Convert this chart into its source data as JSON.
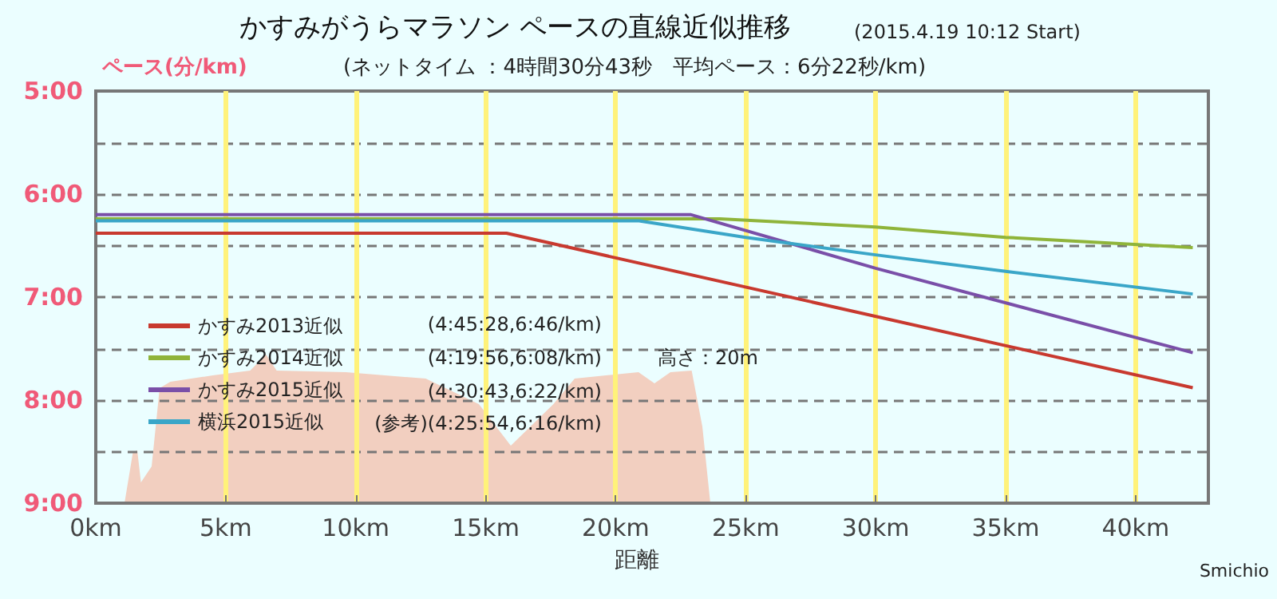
{
  "chart_data": {
    "type": "line",
    "title": "かすみがうらマラソン ペースの直線近似推移",
    "subtitle": "(ネットタイム ：4時間30分43秒　平均ペース：6分22秒/km)",
    "xlabel": "距離",
    "ylabel": "ペース(分/km)",
    "annotations": [
      "(2015.4.19 10:12 Start)",
      "(4:45:28,6:46/km)",
      "(4:19:56,6:08/km)",
      "(4:30:43,6:22/km)",
      "(参考)(4:25:54,6:16/km)",
      "高さ：20m",
      "Smichio"
    ],
    "series": [
      {
        "name": "かすみ2013近似",
        "color": "#c8392f",
        "x": [
          0,
          15.8,
          42.2
        ],
        "values": [
          6.38,
          6.38,
          7.88
        ]
      },
      {
        "name": "かすみ2014近似",
        "color": "#8fb43a",
        "x": [
          0,
          24,
          30,
          35,
          42.2
        ],
        "values": [
          6.24,
          6.24,
          6.32,
          6.42,
          6.52
        ]
      },
      {
        "name": "かすみ2015近似",
        "color": "#7a4fa8",
        "x": [
          0,
          22.9,
          30,
          42.2
        ],
        "values": [
          6.2,
          6.2,
          6.72,
          7.54
        ]
      },
      {
        "name": "横浜2015近似",
        "color": "#3aa6c8",
        "x": [
          0,
          20.9,
          25,
          30,
          35,
          42.2
        ],
        "values": [
          6.26,
          6.26,
          6.42,
          6.59,
          6.75,
          6.97
        ]
      }
    ],
    "xlim": [
      0,
      42.8
    ],
    "xticks": [
      {
        "value": 0,
        "label": "0km"
      },
      {
        "value": 5,
        "label": "5km"
      },
      {
        "value": 10,
        "label": "10km"
      },
      {
        "value": 15,
        "label": "15km"
      },
      {
        "value": 20,
        "label": "20km"
      },
      {
        "value": 25,
        "label": "25km"
      },
      {
        "value": 30,
        "label": "30km"
      },
      {
        "value": 35,
        "label": "35km"
      },
      {
        "value": 40,
        "label": "40km"
      }
    ],
    "ylim": [
      9,
      5
    ],
    "yticks": [
      {
        "value": 5,
        "label": "5:00"
      },
      {
        "value": 5.5,
        "label": null
      },
      {
        "value": 6,
        "label": "6:00"
      },
      {
        "value": 6.5,
        "label": null
      },
      {
        "value": 7,
        "label": "7:00"
      },
      {
        "value": 7.5,
        "label": null
      },
      {
        "value": 8,
        "label": "8:00"
      },
      {
        "value": 8.5,
        "label": null
      },
      {
        "value": 9,
        "label": "9:00"
      }
    ],
    "grid": true,
    "legend": "left",
    "marker": "none",
    "line_style": "solid"
  }
}
